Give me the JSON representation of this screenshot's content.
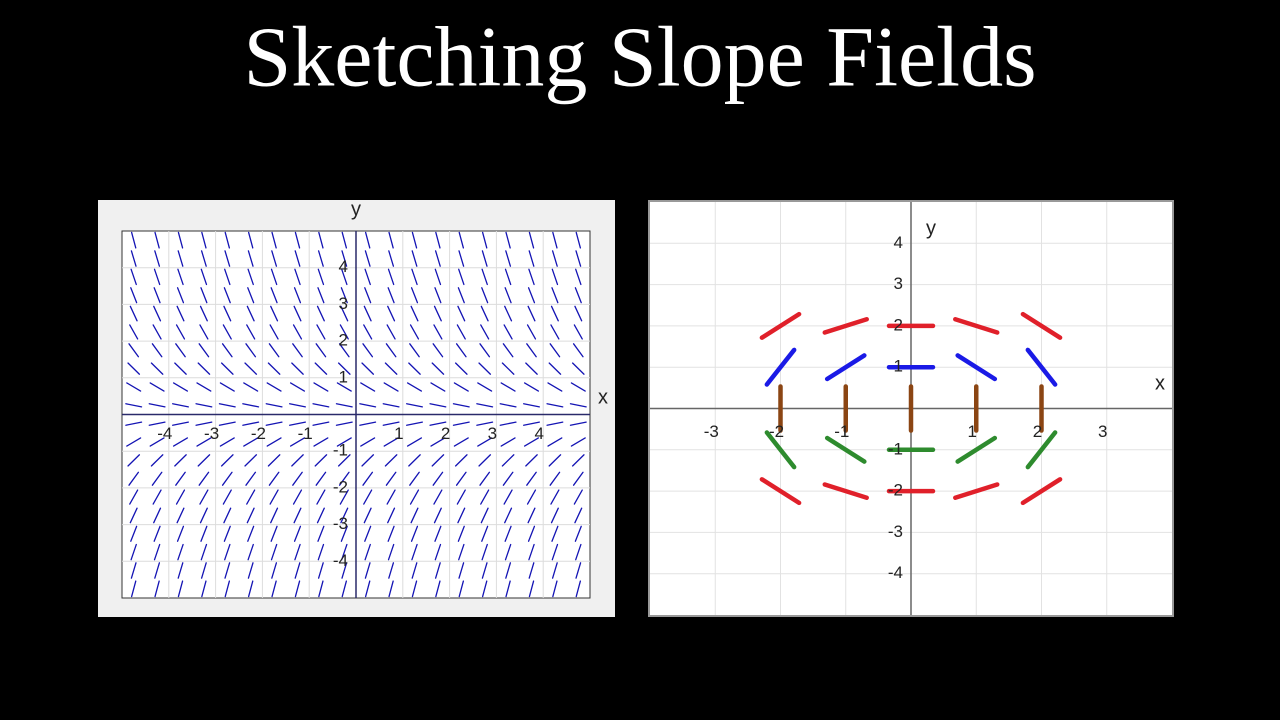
{
  "title": "Sketching Slope Fields",
  "chart_data": [
    {
      "type": "slope_field",
      "xlabel": "x",
      "ylabel": "y",
      "xlim": [
        -5,
        5
      ],
      "ylim": [
        -5,
        5
      ],
      "xticks": [
        -4,
        -3,
        -2,
        -1,
        1,
        2,
        3,
        4
      ],
      "yticks": [
        -4,
        -3,
        -2,
        -1,
        1,
        2,
        3,
        4
      ],
      "grid": true,
      "color": "#1414b4",
      "x": [
        -4.75,
        -4.25,
        -3.75,
        -3.25,
        -2.75,
        -2.25,
        -1.75,
        -1.25,
        -0.75,
        -0.25,
        0.25,
        0.75,
        1.25,
        1.75,
        2.25,
        2.75,
        3.25,
        3.75,
        4.25,
        4.75
      ],
      "y": [
        -4.75,
        -4.25,
        -3.75,
        -3.25,
        -2.75,
        -2.25,
        -1.75,
        -1.25,
        -0.75,
        -0.25,
        0.25,
        0.75,
        1.25,
        1.75,
        2.25,
        2.75,
        3.25,
        3.75,
        4.25,
        4.75
      ],
      "slopes": [
        4.75,
        4.25,
        3.75,
        3.25,
        2.75,
        2.25,
        1.75,
        1.25,
        0.75,
        0.25,
        -0.25,
        -0.75,
        -1.25,
        -1.75,
        -2.25,
        -2.75,
        -3.25,
        -3.75,
        -4.25,
        -4.75
      ]
    },
    {
      "type": "slope_field",
      "xlabel": "x",
      "ylabel": "y",
      "xlim": [
        -4,
        4
      ],
      "ylim": [
        -5,
        5
      ],
      "xticks": [
        -3,
        -2,
        -1,
        1,
        2,
        3
      ],
      "yticks": [
        -4,
        -3,
        -2,
        -1,
        1,
        2,
        3,
        4
      ],
      "grid": true,
      "x": [
        -2,
        -1,
        0,
        1,
        2
      ],
      "series": [
        {
          "y": 2,
          "color": "#e0202a",
          "slopes": [
            1,
            0.5,
            0,
            -0.5,
            -1
          ]
        },
        {
          "y": 1,
          "color": "#1a1ae6",
          "slopes": [
            2,
            1,
            0,
            -1,
            -2
          ]
        },
        {
          "y": 0,
          "color": "#8b4513",
          "slopes": [
            null,
            null,
            null,
            null,
            null
          ]
        },
        {
          "y": -1,
          "color": "#2e8b2e",
          "slopes": [
            -2,
            -1,
            0,
            1,
            2
          ]
        },
        {
          "y": -2,
          "color": "#e0202a",
          "slopes": [
            -1,
            -0.5,
            0,
            0.5,
            1
          ]
        }
      ]
    }
  ]
}
